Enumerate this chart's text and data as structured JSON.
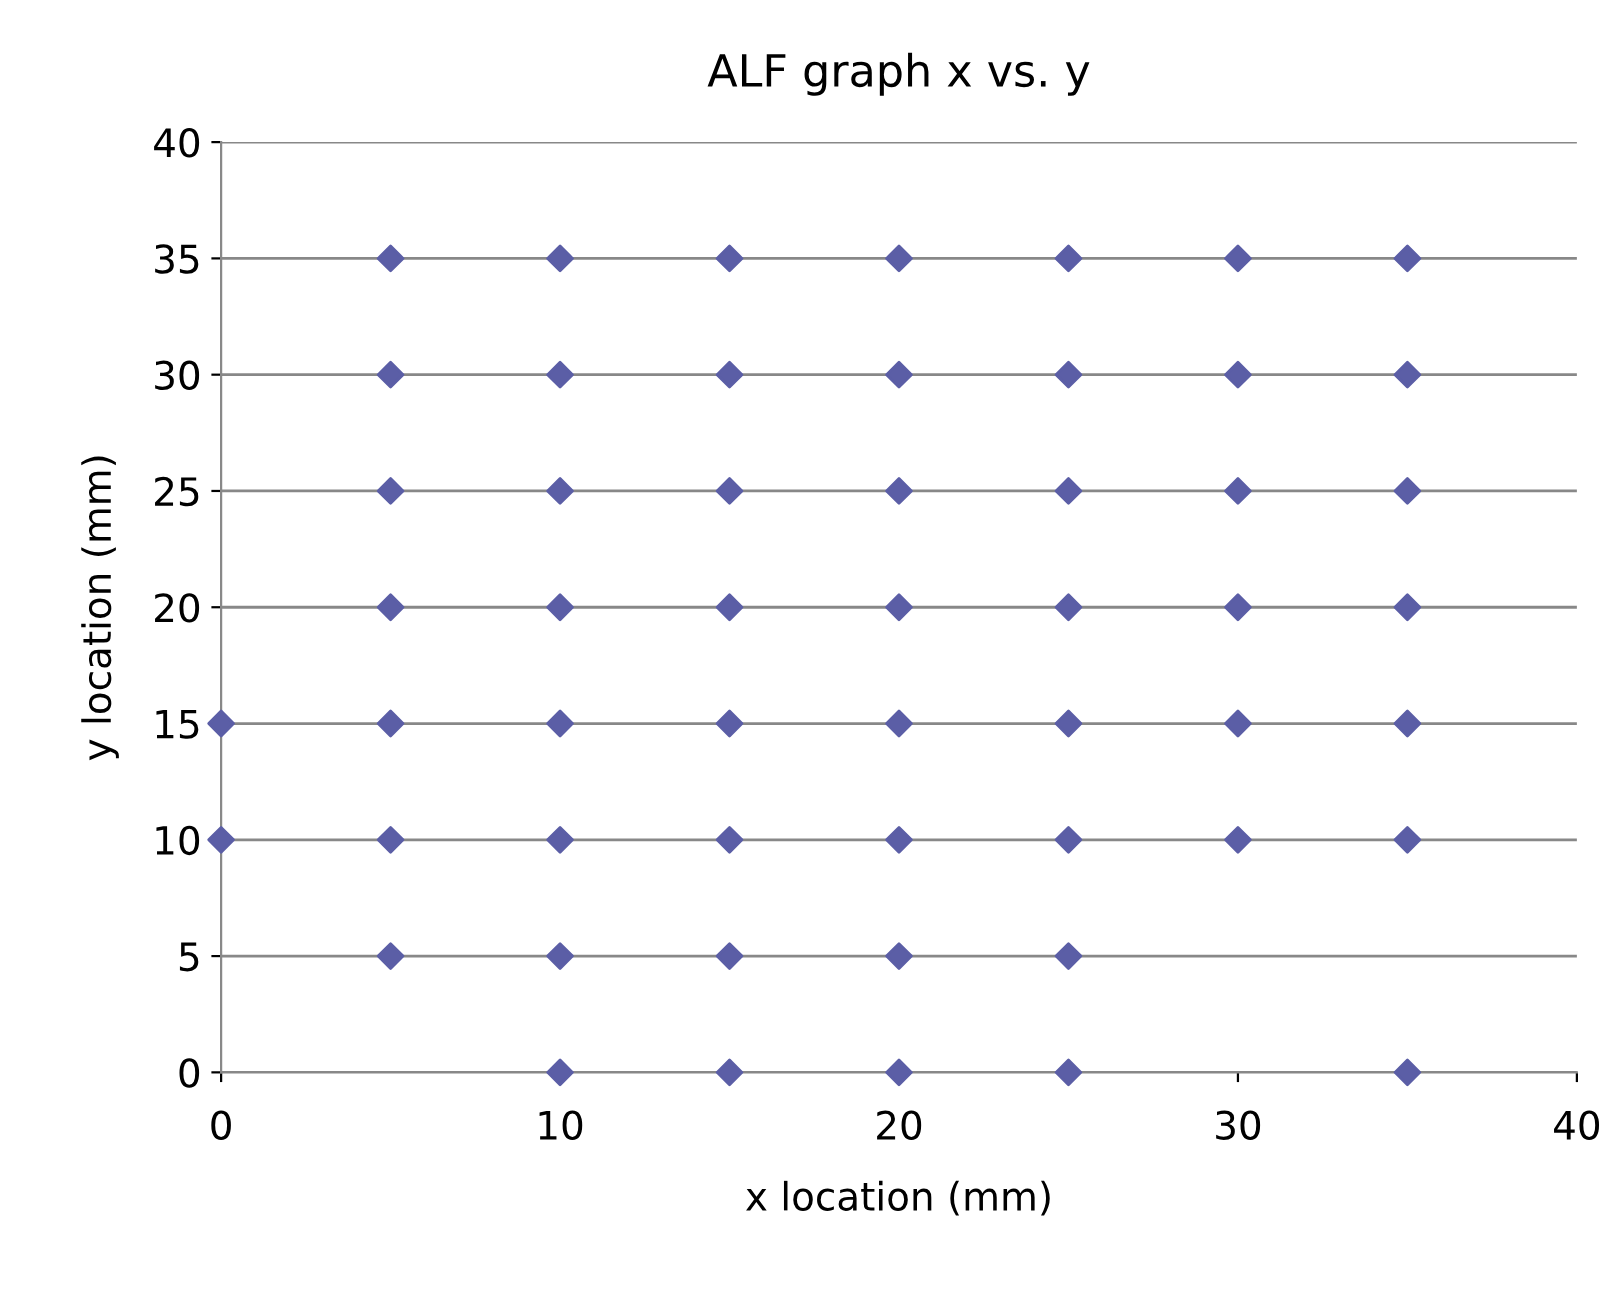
{
  "chart_data": {
    "type": "scatter",
    "title": "ALF graph x vs. y",
    "xlabel": "x location (mm)",
    "ylabel": "y location (mm)",
    "x": [
      5,
      10,
      15,
      20,
      25,
      30,
      35,
      5,
      10,
      15,
      20,
      25,
      30,
      35,
      5,
      10,
      15,
      20,
      25,
      30,
      35,
      5,
      10,
      15,
      20,
      25,
      30,
      35,
      0,
      5,
      10,
      15,
      20,
      25,
      30,
      35,
      0,
      5,
      10,
      15,
      20,
      25,
      30,
      35,
      5,
      10,
      15,
      20,
      25,
      10,
      15,
      20,
      25,
      35
    ],
    "values": [
      35,
      35,
      35,
      35,
      35,
      35,
      35,
      30,
      30,
      30,
      30,
      30,
      30,
      30,
      25,
      25,
      25,
      25,
      25,
      25,
      25,
      20,
      20,
      20,
      20,
      20,
      20,
      20,
      15,
      15,
      15,
      15,
      15,
      15,
      15,
      15,
      10,
      10,
      10,
      10,
      10,
      10,
      10,
      10,
      5,
      5,
      5,
      5,
      5,
      0,
      0,
      0,
      0,
      0
    ],
    "color": "#5b5ea6",
    "marker": "diamond",
    "xlim": [
      0,
      40
    ],
    "xticks": [
      0,
      10,
      20,
      30,
      40
    ],
    "ylim": [
      0,
      40
    ],
    "yticks": [
      0,
      5,
      10,
      15,
      20,
      25,
      30,
      35,
      40
    ],
    "grid": "y",
    "legend": false
  }
}
